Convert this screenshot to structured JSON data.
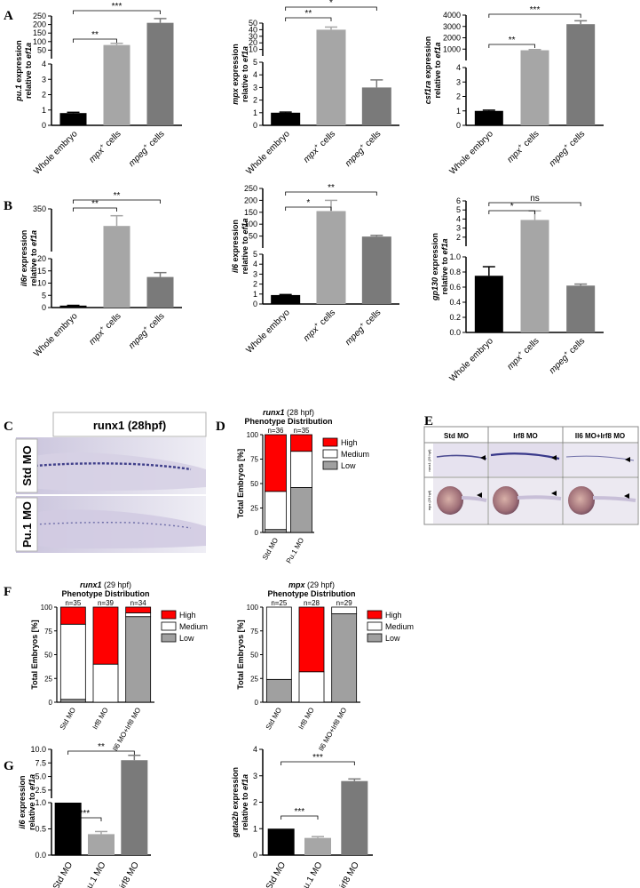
{
  "panels": {
    "A": "A",
    "B": "B",
    "C": "C",
    "D": "D",
    "E": "E",
    "F": "F",
    "G": "G"
  },
  "cats_cells": [
    "Whole embryo",
    "mpx+ cells",
    "mpeg+ cells"
  ],
  "cats_mo": [
    "Std MO",
    "pu.1 MO",
    "irf8 MO"
  ],
  "panel_c": {
    "title": "runx1 (28hpf)",
    "rows": [
      "Std MO",
      "Pu.1 MO"
    ]
  },
  "panel_e": {
    "cols": [
      "Std MO",
      "Irf8 MO",
      "Il6 MO+Irf8 MO"
    ],
    "rows": [
      "runx1 (29 hpf)",
      "mpx (29 hpf)"
    ]
  },
  "colors": {
    "black": "#000000",
    "light_gray": "#a6a6a6",
    "dark_gray": "#7a7a7a",
    "high": "#ff0000",
    "medium": "#ffffff",
    "low": "#a0a0a0"
  },
  "chart_data": [
    {
      "id": "A1",
      "type": "bar",
      "ylabel": "pu.1 expression relative to ef1a",
      "values": [
        0.8,
        80,
        210
      ],
      "errors": [
        0.05,
        10,
        25
      ],
      "lower_ticks": [
        "0",
        "1",
        "2",
        "3",
        "4"
      ],
      "upper_ticks": [
        "50",
        "100",
        "150",
        "200",
        "250"
      ],
      "sig": [
        "**",
        "***"
      ]
    },
    {
      "id": "A2",
      "type": "bar",
      "ylabel": "mpx expression relative to ef1a",
      "values": [
        1.0,
        40,
        3.0
      ],
      "errors": [
        0.05,
        4,
        0.6
      ],
      "lower_ticks": [
        "0",
        "1",
        "2",
        "3",
        "4",
        "5"
      ],
      "upper_ticks": [
        "10",
        "20",
        "30",
        "40",
        "50"
      ],
      "sig": [
        "**",
        "*"
      ]
    },
    {
      "id": "A3",
      "type": "bar",
      "ylabel": "csf1ra expression relative to ef1a",
      "values": [
        1.0,
        900,
        3200
      ],
      "errors": [
        0.05,
        60,
        300
      ],
      "lower_ticks": [
        "0",
        "1",
        "2",
        "3",
        "4"
      ],
      "upper_ticks": [
        "1000",
        "2000",
        "3000",
        "4000"
      ],
      "sig": [
        "**",
        "***"
      ]
    },
    {
      "id": "B1",
      "type": "bar",
      "ylabel": "il6r expression relative to ef1a",
      "values": [
        0.8,
        330,
        12.5
      ],
      "errors": [
        0.1,
        12,
        1.8
      ],
      "lower_ticks": [
        "0",
        "5",
        "10",
        "15",
        "20"
      ],
      "upper_ticks": [
        "350"
      ],
      "sig": [
        "**",
        "**"
      ]
    },
    {
      "id": "B2",
      "type": "bar",
      "ylabel": "il6 expression relative to ef1a",
      "values": [
        0.9,
        155,
        48
      ],
      "errors": [
        0.05,
        45,
        5
      ],
      "lower_ticks": [
        "0",
        "1",
        "2",
        "3",
        "4",
        "5"
      ],
      "upper_ticks": [
        "50",
        "100",
        "150",
        "200",
        "250"
      ],
      "sig": [
        "*",
        "**"
      ]
    },
    {
      "id": "B3",
      "type": "bar",
      "ylabel": "gp130 expression relative to ef1a",
      "values": [
        0.75,
        3.9,
        0.62
      ],
      "errors": [
        0.12,
        1.0,
        0.02
      ],
      "lower_ticks": [
        "0.0",
        "0.2",
        "0.4",
        "0.6",
        "0.8",
        "1.0"
      ],
      "upper_ticks": [
        "2",
        "3",
        "4",
        "5",
        "6"
      ],
      "sig": [
        "*",
        "ns"
      ]
    },
    {
      "id": "D",
      "type": "stacked-bar",
      "title_italic": "runx1",
      "title_rest": " (28 hpf)",
      "title2": "Phenotype Distribution",
      "ylabel": "Total Embryos [%]",
      "categories": [
        "Std MO",
        "Pu.1 MO"
      ],
      "n": [
        "n=36",
        "n=35"
      ],
      "yticks": [
        "0",
        "25",
        "50",
        "75",
        "100"
      ],
      "series": [
        {
          "name": "Low",
          "values": [
            3,
            46
          ]
        },
        {
          "name": "Medium",
          "values": [
            39,
            37
          ]
        },
        {
          "name": "High",
          "values": [
            58,
            17
          ]
        }
      ]
    },
    {
      "id": "F1",
      "type": "stacked-bar",
      "title_italic": "runx1",
      "title_rest": " (29 hpf)",
      "title2": "Phenotype Distribution",
      "ylabel": "Total Embryos [%]",
      "categories": [
        "Std MO",
        "Irf8 MO",
        "Il6 MO+Irf8 MO"
      ],
      "n": [
        "n=35",
        "n=39",
        "n=34"
      ],
      "yticks": [
        "0",
        "25",
        "50",
        "75",
        "100"
      ],
      "series": [
        {
          "name": "Low",
          "values": [
            3,
            0,
            90
          ]
        },
        {
          "name": "Medium",
          "values": [
            79,
            40,
            4
          ]
        },
        {
          "name": "High",
          "values": [
            18,
            60,
            6
          ]
        }
      ]
    },
    {
      "id": "F2",
      "type": "stacked-bar",
      "title_italic": "mpx",
      "title_rest": " (29 hpf)",
      "title2": "Phenotype Distribution",
      "ylabel": "Total Embryos [%]",
      "categories": [
        "Std MO",
        "Irf8 MO",
        "Il6 MO+Irf8 MO"
      ],
      "n": [
        "n=25",
        "n=28",
        "n=29"
      ],
      "yticks": [
        "0",
        "25",
        "50",
        "75",
        "100"
      ],
      "series": [
        {
          "name": "Low",
          "values": [
            24,
            0,
            93
          ]
        },
        {
          "name": "Medium",
          "values": [
            76,
            32,
            7
          ]
        },
        {
          "name": "High",
          "values": [
            0,
            68,
            0
          ]
        }
      ]
    },
    {
      "id": "G1",
      "type": "bar",
      "ylabel": "il6 expression relative to ef1a",
      "values": [
        1.0,
        0.4,
        8.0
      ],
      "errors": [
        0,
        0.05,
        0.9
      ],
      "lower_ticks": [
        "0.0",
        "0.5",
        "1.0"
      ],
      "upper_ticks": [
        "2.5",
        "5.0",
        "7.5",
        "10.0"
      ],
      "sig": [
        "***",
        "**"
      ]
    },
    {
      "id": "G2",
      "type": "bar",
      "ylabel": "gata2b expression relative to ef1a",
      "values": [
        1.0,
        0.65,
        2.8
      ],
      "errors": [
        0,
        0.05,
        0.08
      ],
      "yticks": [
        "0",
        "1",
        "2",
        "3",
        "4"
      ],
      "sig": [
        "***",
        "***"
      ]
    }
  ],
  "legend": {
    "high": "High",
    "medium": "Medium",
    "low": "Low"
  }
}
